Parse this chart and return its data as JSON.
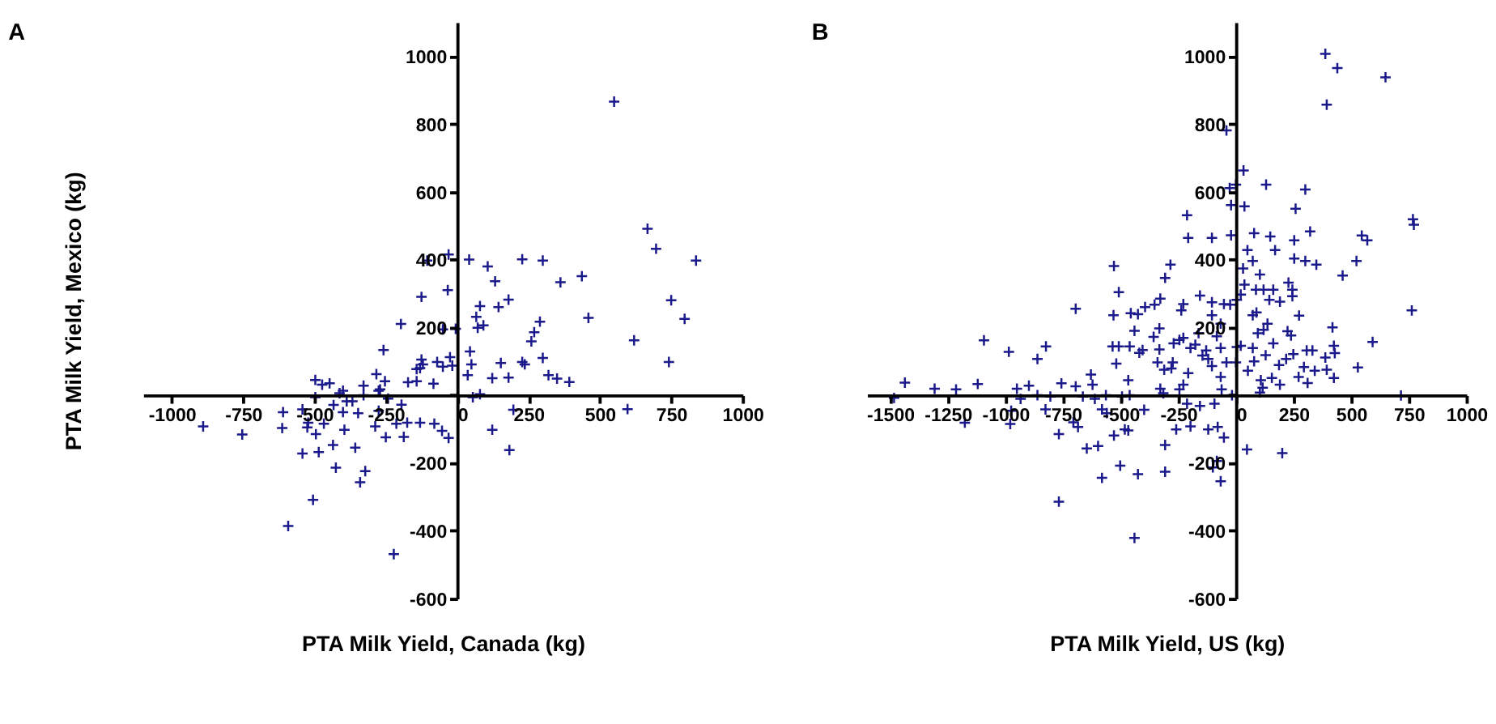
{
  "chart_data": [
    {
      "type": "scatter",
      "title": "A",
      "xlabel": "PTA Milk Yield, Canada (kg)",
      "ylabel": "PTA Milk Yield, Mexico (kg)",
      "xlim": [
        -1100,
        1000
      ],
      "ylim": [
        -600,
        1100
      ],
      "xticks": [
        -1000,
        -750,
        -500,
        -250,
        0,
        250,
        500,
        750,
        1000
      ],
      "yticks": [
        -600,
        -400,
        -200,
        {
          "value": 0,
          "label": null
        },
        200,
        400,
        600,
        800,
        1000
      ],
      "grid": false,
      "legend": false,
      "marker": "cross",
      "series": [
        {
          "color": "#1a1a8c",
          "x": [
            550,
            667,
            697,
            837,
            750,
            797,
            620,
            742,
            597,
            437,
            460,
            362,
            300,
            228,
            290,
            270,
            260,
            300,
            228,
            237,
            320,
            350,
            393,
            180,
            145,
            133,
            107,
            42,
            -30,
            -33,
            -105,
            -125,
            -197,
            -50,
            -5,
            80,
            67,
            72,
            92,
            153,
            123,
            180,
            45,
            50,
            37,
            -25,
            -17,
            -50,
            -70,
            -83,
            -125,
            -120,
            -130,
            -142,
            -172,
            -258,
            -283,
            -270,
            -253,
            -242,
            -195,
            -213,
            -175,
            -130,
            -80,
            -53,
            -30,
            55,
            80,
            123,
            197,
            183,
            -222,
            -340,
            -322,
            -357,
            -425,
            -435,
            -485,
            -542,
            -495,
            -505,
            -592,
            -753,
            -890,
            -613,
            -610,
            -542,
            -522,
            -525,
            -467,
            -433,
            -395,
            -400,
            -287,
            -250,
            -187,
            -497,
            -473,
            -447,
            -412,
            -400,
            -387,
            -367,
            -347,
            -497,
            -328,
            -328,
            -275,
            -275,
            -142
          ],
          "values": [
            866,
            491,
            432,
            397,
            280,
            225,
            162,
            98,
            -41,
            351,
            228,
            333,
            397,
            401,
            217,
            186,
            159,
            110,
            98,
            91,
            59,
            49,
            39,
            282,
            260,
            336,
            380,
            400,
            415,
            310,
            397,
            290,
            210,
            194,
            196,
            263,
            231,
            199,
            206,
            95,
            50,
            52,
            129,
            91,
            59,
            112,
            87,
            84,
            98,
            34,
            105,
            91,
            80,
            41,
            38,
            133,
            62,
            17,
            41,
            -10,
            -28,
            -84,
            -81,
            -81,
            -84,
            -105,
            -126,
            -6,
            3,
            -102,
            -43,
            -162,
            -469,
            -257,
            -224,
            -155,
            -214,
            -147,
            -168,
            -172,
            -115,
            -309,
            -386,
            -116,
            -92,
            -97,
            -50,
            -42,
            -81,
            -95,
            -84,
            -29,
            -102,
            -50,
            -92,
            -124,
            -123,
            45,
            31,
            35,
            6,
            13,
            -18,
            -18,
            -53,
            -6,
            28,
            0,
            13,
            -46,
            77
          ]
        }
      ]
    },
    {
      "type": "scatter",
      "title": "B",
      "xlabel": "PTA Milk Yield, US (kg)",
      "xlim": [
        -1600,
        1000
      ],
      "ylim": [
        -600,
        1100
      ],
      "xticks": [
        -1500,
        -1250,
        -1000,
        -750,
        -500,
        -250,
        0,
        250,
        500,
        750,
        1000
      ],
      "yticks": [
        -600,
        -400,
        -200,
        {
          "value": 0,
          "label": null
        },
        200,
        400,
        600,
        800,
        1000
      ],
      "grid": false,
      "legend": false,
      "marker": "cross",
      "series": [
        {
          "color": "#1a1a8c",
          "x": [
            388,
            440,
            649,
            394,
            -41,
            33,
            -27,
            0,
            131,
            301,
            -21,
            37,
            259,
            -212,
            -207,
            -104,
            -21,
            79,
            149,
            170,
            253,
            322,
            50,
            73,
            253,
            301,
            349,
            523,
            463,
            546,
            570,
            768,
            772,
            763,
            593,
            529,
            419,
            425,
            429,
            425,
            388,
            394,
            342,
            307,
            332,
            295,
            311,
            272,
            249,
            274,
            245,
            228,
            245,
            191,
            162,
            120,
            87,
            37,
            31,
            104,
            145,
            73,
            89,
            137,
            120,
            95,
            73,
            52,
            79,
            129,
            162,
            187,
            224,
            239,
            218,
            108,
            116,
            156,
            191,
            104,
            21,
            4,
            0,
            21,
            4,
            -25,
            -52,
            -66,
            -83,
            -66,
            -41,
            -66,
            -62,
            -17,
            -104,
            -104,
            -156,
            -162,
            -129,
            -120,
            -104,
            -145,
            -176,
            -228,
            -245,
            -228,
            -237,
            -197,
            -207,
            -228,
            -245,
            -212,
            -197,
            -259,
            -156,
            -120,
            -93,
            -79,
            -52,
            -83,
            -100,
            -66,
            48,
            201,
            716,
            -284,
            -307,
            -328,
            -357,
            -332,
            -353,
            -394,
            -425,
            -456,
            -440,
            -461,
            -419,
            -405,
            -332,
            -340,
            -274,
            -270,
            -280,
            -311,
            -328,
            -315,
            -529,
            -531,
            -508,
            -535,
            -508,
            -519,
            -467,
            -494,
            -461,
            -482,
            -529,
            -502,
            -467,
            -425,
            -440,
            -398,
            -307,
            -307,
            -581,
            -598,
            -647,
            -564,
            -622,
            -629,
            -612,
            -581,
            -560,
            -705,
            -685,
            -695,
            -768,
            -768,
            -757,
            -695,
            -664,
            -826,
            -805,
            -861,
            -898,
            -950,
            -934,
            -975,
            -979,
            -985,
            -861,
            -824,
            -1093,
            -1120,
            -1176,
            -1214,
            -1307,
            -1436,
            -1483
          ],
          "values": [
            1007,
            965,
            938,
            857,
            781,
            663,
            611,
            621,
            621,
            607,
            561,
            557,
            550,
            531,
            464,
            464,
            472,
            478,
            468,
            428,
            457,
            483,
            428,
            396,
            403,
            396,
            385,
            396,
            353,
            471,
            457,
            519,
            503,
            250,
            157,
            82,
            200,
            146,
            124,
            51,
            111,
            75,
            72,
            132,
            132,
            83,
            36,
            54,
            121,
            235,
            292,
            332,
            311,
            276,
            311,
            311,
            311,
            326,
            374,
            356,
            281,
            236,
            244,
            211,
            193,
            183,
            139,
            72,
            100,
            118,
            153,
            89,
            189,
            176,
            107,
            44,
            22,
            51,
            31,
            8,
            146,
            142,
            97,
            297,
            281,
            267,
            269,
            211,
            174,
            139,
            97,
            54,
            17,
            0,
            274,
            236,
            294,
            183,
            132,
            107,
            86,
            117,
            149,
            169,
            163,
            269,
            250,
            139,
            65,
            31,
            17,
            -25,
            -92,
            -101,
            -32,
            -101,
            -25,
            -94,
            -125,
            -194,
            -213,
            -254,
            -160,
            -171,
            -1,
            385,
            346,
            285,
            172,
            197,
            267,
            260,
            239,
            242,
            190,
            144,
            125,
            133,
            135,
            97,
            97,
            153,
            79,
            75,
            19,
            6,
            381,
            236,
            304,
            144,
            144,
            93,
            44,
            -4,
            0,
            -101,
            -119,
            -208,
            -104,
            -233,
            -421,
            -43,
            -147,
            -226,
            -244,
            -150,
            -157,
            0,
            31,
            61,
            -11,
            -42,
            -53,
            -80,
            -94,
            255,
            -115,
            -314,
            35,
            26,
            -4,
            -42,
            -4,
            0,
            28,
            19,
            -11,
            -46,
            -85,
            128,
            107,
            144,
            162,
            33,
            -81,
            17,
            19,
            37,
            -8
          ]
        }
      ]
    }
  ]
}
